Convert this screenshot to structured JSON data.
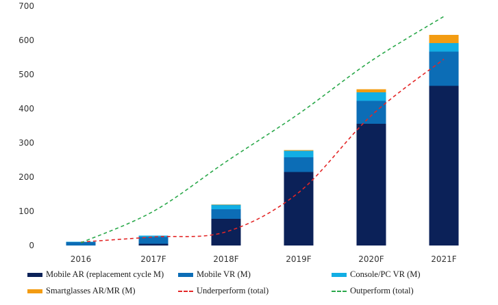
{
  "chart_data": {
    "type": "bar",
    "stacked": true,
    "categories": [
      "2016",
      "2017F",
      "2018F",
      "2019F",
      "2020F",
      "2021F"
    ],
    "ylim": [
      0,
      700
    ],
    "yticks": [
      "0",
      "100",
      "200",
      "300",
      "400",
      "500",
      "600",
      "700"
    ],
    "grid": false,
    "legend_position": "bottom",
    "series": [
      {
        "name": "Mobile AR (replacement cycle M)",
        "kind": "bar",
        "color": "#0b2158",
        "values": [
          0,
          5,
          78,
          215,
          356,
          467
        ]
      },
      {
        "name": "Mobile VR (M)",
        "kind": "bar",
        "color": "#0c6db6",
        "values": [
          10,
          20,
          28,
          43,
          67,
          100
        ]
      },
      {
        "name": "Console/PC VR (M)",
        "kind": "bar",
        "color": "#12aee4",
        "values": [
          1,
          4,
          13,
          19,
          25,
          25
        ]
      },
      {
        "name": "Smartglasses AR/MR (M)",
        "kind": "bar",
        "color": "#f39c12",
        "values": [
          0,
          0,
          1,
          2,
          9,
          24
        ]
      },
      {
        "name": "Underperform (total)",
        "kind": "line",
        "color": "#e32626",
        "values": [
          10,
          25,
          40,
          155,
          380,
          545
        ]
      },
      {
        "name": "Outperform (total)",
        "kind": "line",
        "color": "#2aa84a",
        "values": [
          8,
          100,
          245,
          385,
          540,
          670
        ]
      }
    ]
  }
}
